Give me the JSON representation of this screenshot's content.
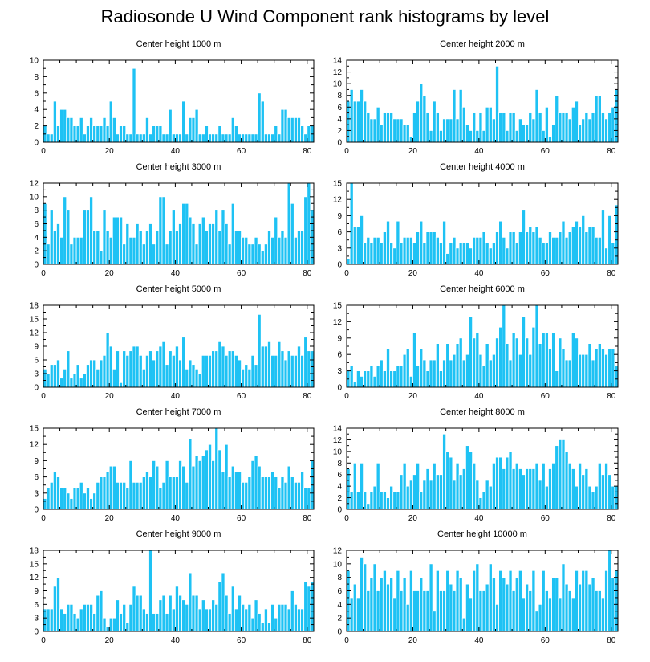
{
  "title": "Radiosonde U Wind Component rank histograms by level",
  "colors": {
    "bar": "#1ec2f4",
    "bar_edge": "#ffffff",
    "axis": "#000000"
  },
  "chart_data": [
    {
      "type": "bar",
      "title": "Center height 1000 m",
      "xlim": [
        0,
        82
      ],
      "ylim": [
        0,
        10
      ],
      "xticks": [
        0,
        20,
        40,
        60,
        80
      ],
      "yticks": [
        0,
        2,
        4,
        6,
        8,
        10
      ],
      "values": [
        2,
        1,
        1,
        5,
        2,
        4,
        4,
        3,
        3,
        2,
        2,
        3,
        1,
        2,
        3,
        2,
        2,
        2,
        3,
        2,
        5,
        3,
        1,
        2,
        2,
        1,
        1,
        9,
        1,
        1,
        1,
        3,
        1,
        2,
        2,
        2,
        1,
        1,
        4,
        1,
        1,
        1,
        5,
        1,
        3,
        3,
        4,
        1,
        1,
        2,
        1,
        1,
        1,
        2,
        1,
        1,
        1,
        3,
        2,
        1,
        1,
        1,
        1,
        1,
        1,
        6,
        5,
        1,
        1,
        1,
        2,
        1,
        4,
        4,
        3,
        3,
        3,
        3,
        2,
        1,
        2,
        2
      ]
    },
    {
      "type": "bar",
      "title": "Center height 2000 m",
      "xlim": [
        0,
        82
      ],
      "ylim": [
        0,
        14
      ],
      "xticks": [
        0,
        20,
        40,
        60,
        80
      ],
      "yticks": [
        0,
        2,
        4,
        6,
        8,
        10,
        12,
        14
      ],
      "values": [
        7,
        9,
        7,
        7,
        9,
        7,
        5,
        4,
        4,
        6,
        3,
        5,
        5,
        5,
        4,
        4,
        4,
        3,
        3,
        1,
        5,
        7,
        10,
        8,
        5,
        2,
        7,
        5,
        2,
        4,
        4,
        4,
        9,
        4,
        9,
        6,
        3,
        2,
        5,
        2,
        5,
        2,
        6,
        6,
        4,
        13,
        5,
        5,
        2,
        5,
        5,
        2,
        4,
        3,
        3,
        5,
        4,
        9,
        5,
        2,
        6,
        1,
        3,
        8,
        5,
        5,
        5,
        4,
        6,
        7,
        3,
        4,
        5,
        4,
        5,
        8,
        8,
        5,
        4,
        5,
        6,
        9
      ]
    },
    {
      "type": "bar",
      "title": "Center height 3000 m",
      "xlim": [
        0,
        82
      ],
      "ylim": [
        0,
        12
      ],
      "xticks": [
        0,
        20,
        40,
        60,
        80
      ],
      "yticks": [
        0,
        2,
        4,
        6,
        8,
        10,
        12
      ],
      "values": [
        9,
        3,
        8,
        5,
        6,
        4,
        10,
        8,
        3,
        4,
        4,
        4,
        8,
        8,
        10,
        5,
        5,
        2,
        8,
        5,
        4,
        7,
        7,
        7,
        3,
        6,
        4,
        4,
        6,
        5,
        3,
        5,
        6,
        3,
        5,
        10,
        10,
        3,
        5,
        8,
        5,
        6,
        9,
        9,
        7,
        6,
        3,
        6,
        7,
        5,
        6,
        6,
        8,
        5,
        8,
        6,
        3,
        9,
        5,
        5,
        4,
        4,
        3,
        3,
        4,
        3,
        2,
        3,
        5,
        4,
        7,
        4,
        5,
        4,
        12,
        9,
        4,
        5,
        5,
        10,
        12,
        8
      ]
    },
    {
      "type": "bar",
      "title": "Center height 4000 m",
      "xlim": [
        0,
        82
      ],
      "ylim": [
        0,
        15
      ],
      "xticks": [
        0,
        20,
        40,
        60,
        80
      ],
      "yticks": [
        0,
        3,
        6,
        9,
        12,
        15
      ],
      "values": [
        1,
        15,
        7,
        7,
        9,
        4,
        5,
        4,
        5,
        5,
        4,
        6,
        8,
        4,
        3,
        8,
        4,
        5,
        5,
        5,
        4,
        6,
        8,
        4,
        6,
        6,
        6,
        5,
        4,
        8,
        2,
        4,
        5,
        3,
        4,
        4,
        4,
        3,
        5,
        5,
        5,
        6,
        4,
        3,
        4,
        6,
        8,
        5,
        3,
        6,
        6,
        4,
        6,
        10,
        6,
        7,
        6,
        7,
        5,
        4,
        4,
        6,
        5,
        5,
        6,
        8,
        5,
        6,
        7,
        8,
        7,
        9,
        6,
        7,
        7,
        5,
        5,
        10,
        3,
        9,
        4,
        11
      ]
    },
    {
      "type": "bar",
      "title": "Center height 5000 m",
      "xlim": [
        0,
        82
      ],
      "ylim": [
        0,
        18
      ],
      "xticks": [
        0,
        20,
        40,
        60,
        80
      ],
      "yticks": [
        0,
        3,
        6,
        9,
        12,
        15,
        18
      ],
      "values": [
        4,
        3,
        5,
        5,
        6,
        2,
        4,
        8,
        2,
        3,
        5,
        2,
        3,
        5,
        6,
        6,
        4,
        6,
        7,
        12,
        9,
        4,
        8,
        1,
        8,
        7,
        8,
        9,
        9,
        7,
        4,
        7,
        8,
        6,
        8,
        9,
        10,
        5,
        8,
        7,
        9,
        6,
        11,
        4,
        6,
        5,
        4,
        3,
        7,
        7,
        7,
        8,
        8,
        10,
        9,
        7,
        8,
        8,
        7,
        6,
        4,
        5,
        4,
        7,
        5,
        16,
        9,
        9,
        10,
        7,
        7,
        10,
        8,
        6,
        8,
        7,
        7,
        9,
        7,
        11,
        8,
        8
      ]
    },
    {
      "type": "bar",
      "title": "Center height 6000 m",
      "xlim": [
        0,
        82
      ],
      "ylim": [
        0,
        15
      ],
      "xticks": [
        0,
        20,
        40,
        60,
        80
      ],
      "yticks": [
        0,
        3,
        6,
        9,
        12,
        15
      ],
      "values": [
        3,
        4,
        1,
        3,
        2,
        3,
        3,
        4,
        2,
        4,
        5,
        3,
        7,
        3,
        3,
        4,
        4,
        6,
        7,
        2,
        10,
        4,
        7,
        5,
        3,
        5,
        5,
        8,
        3,
        5,
        8,
        5,
        6,
        8,
        9,
        5,
        6,
        13,
        9,
        10,
        6,
        4,
        8,
        5,
        6,
        9,
        11,
        15,
        8,
        5,
        10,
        9,
        6,
        13,
        9,
        6,
        11,
        15,
        8,
        10,
        10,
        7,
        10,
        3,
        9,
        7,
        5,
        5,
        10,
        9,
        6,
        6,
        6,
        8,
        5,
        7,
        8,
        7,
        6,
        7,
        7,
        4
      ]
    },
    {
      "type": "bar",
      "title": "Center height 7000 m",
      "xlim": [
        0,
        82
      ],
      "ylim": [
        0,
        15
      ],
      "xticks": [
        0,
        20,
        40,
        60,
        80
      ],
      "yticks": [
        0,
        3,
        6,
        9,
        12,
        15
      ],
      "values": [
        2,
        4,
        5,
        7,
        6,
        4,
        4,
        3,
        2,
        4,
        4,
        5,
        3,
        4,
        2,
        3,
        5,
        6,
        6,
        7,
        8,
        8,
        5,
        5,
        5,
        4,
        9,
        5,
        5,
        5,
        6,
        7,
        6,
        9,
        8,
        4,
        5,
        9,
        6,
        6,
        6,
        9,
        8,
        5,
        13,
        8,
        10,
        9,
        10,
        11,
        12,
        9,
        15,
        11,
        7,
        12,
        6,
        8,
        7,
        7,
        5,
        5,
        6,
        9,
        10,
        8,
        6,
        6,
        6,
        7,
        6,
        4,
        6,
        5,
        8,
        6,
        5,
        5,
        7,
        4,
        4,
        9
      ]
    },
    {
      "type": "bar",
      "title": "Center height 8000 m",
      "xlim": [
        0,
        82
      ],
      "ylim": [
        0,
        14
      ],
      "xticks": [
        0,
        20,
        40,
        60,
        80
      ],
      "yticks": [
        0,
        2,
        4,
        6,
        8,
        10,
        12,
        14
      ],
      "values": [
        7,
        3,
        8,
        3,
        8,
        3,
        1,
        3,
        4,
        8,
        3,
        3,
        2,
        4,
        3,
        3,
        6,
        8,
        4,
        5,
        6,
        8,
        3,
        5,
        7,
        5,
        8,
        6,
        6,
        13,
        10,
        9,
        5,
        8,
        6,
        7,
        11,
        10,
        8,
        5,
        2,
        3,
        5,
        4,
        8,
        9,
        9,
        7,
        9,
        10,
        7,
        8,
        7,
        6,
        7,
        7,
        7,
        8,
        5,
        8,
        4,
        7,
        8,
        11,
        12,
        12,
        10,
        8,
        7,
        4,
        8,
        6,
        7,
        4,
        3,
        4,
        8,
        6,
        8,
        6,
        4,
        4
      ]
    },
    {
      "type": "bar",
      "title": "Center height 9000 m",
      "xlim": [
        0,
        82
      ],
      "ylim": [
        0,
        18
      ],
      "xticks": [
        0,
        20,
        40,
        60,
        80
      ],
      "yticks": [
        0,
        3,
        6,
        9,
        12,
        15,
        18
      ],
      "values": [
        5,
        5,
        5,
        10,
        12,
        5,
        4,
        6,
        6,
        4,
        3,
        5,
        6,
        6,
        6,
        4,
        8,
        9,
        3,
        1,
        3,
        3,
        7,
        4,
        6,
        2,
        6,
        10,
        8,
        8,
        5,
        4,
        18,
        4,
        4,
        7,
        8,
        4,
        8,
        5,
        10,
        8,
        7,
        6,
        13,
        8,
        8,
        5,
        7,
        5,
        5,
        7,
        6,
        11,
        13,
        8,
        4,
        10,
        5,
        8,
        6,
        5,
        6,
        3,
        7,
        4,
        2,
        5,
        2,
        6,
        3,
        6,
        6,
        6,
        5,
        9,
        6,
        5,
        5,
        11,
        10,
        11
      ]
    },
    {
      "type": "bar",
      "title": "Center height 10000 m",
      "xlim": [
        0,
        82
      ],
      "ylim": [
        0,
        12
      ],
      "xticks": [
        0,
        20,
        40,
        60,
        80
      ],
      "yticks": [
        0,
        2,
        4,
        6,
        8,
        10,
        12
      ],
      "values": [
        9,
        5,
        7,
        5,
        11,
        10,
        6,
        8,
        10,
        6,
        8,
        9,
        7,
        8,
        5,
        9,
        6,
        8,
        4,
        9,
        6,
        6,
        8,
        6,
        6,
        10,
        3,
        9,
        6,
        6,
        9,
        7,
        6,
        9,
        8,
        2,
        7,
        5,
        9,
        10,
        6,
        6,
        7,
        10,
        8,
        4,
        9,
        8,
        7,
        9,
        6,
        8,
        9,
        5,
        7,
        6,
        9,
        3,
        4,
        9,
        6,
        5,
        8,
        8,
        5,
        10,
        7,
        6,
        5,
        9,
        7,
        9,
        9,
        7,
        8,
        6,
        6,
        5,
        9,
        12,
        8,
        9
      ]
    }
  ]
}
